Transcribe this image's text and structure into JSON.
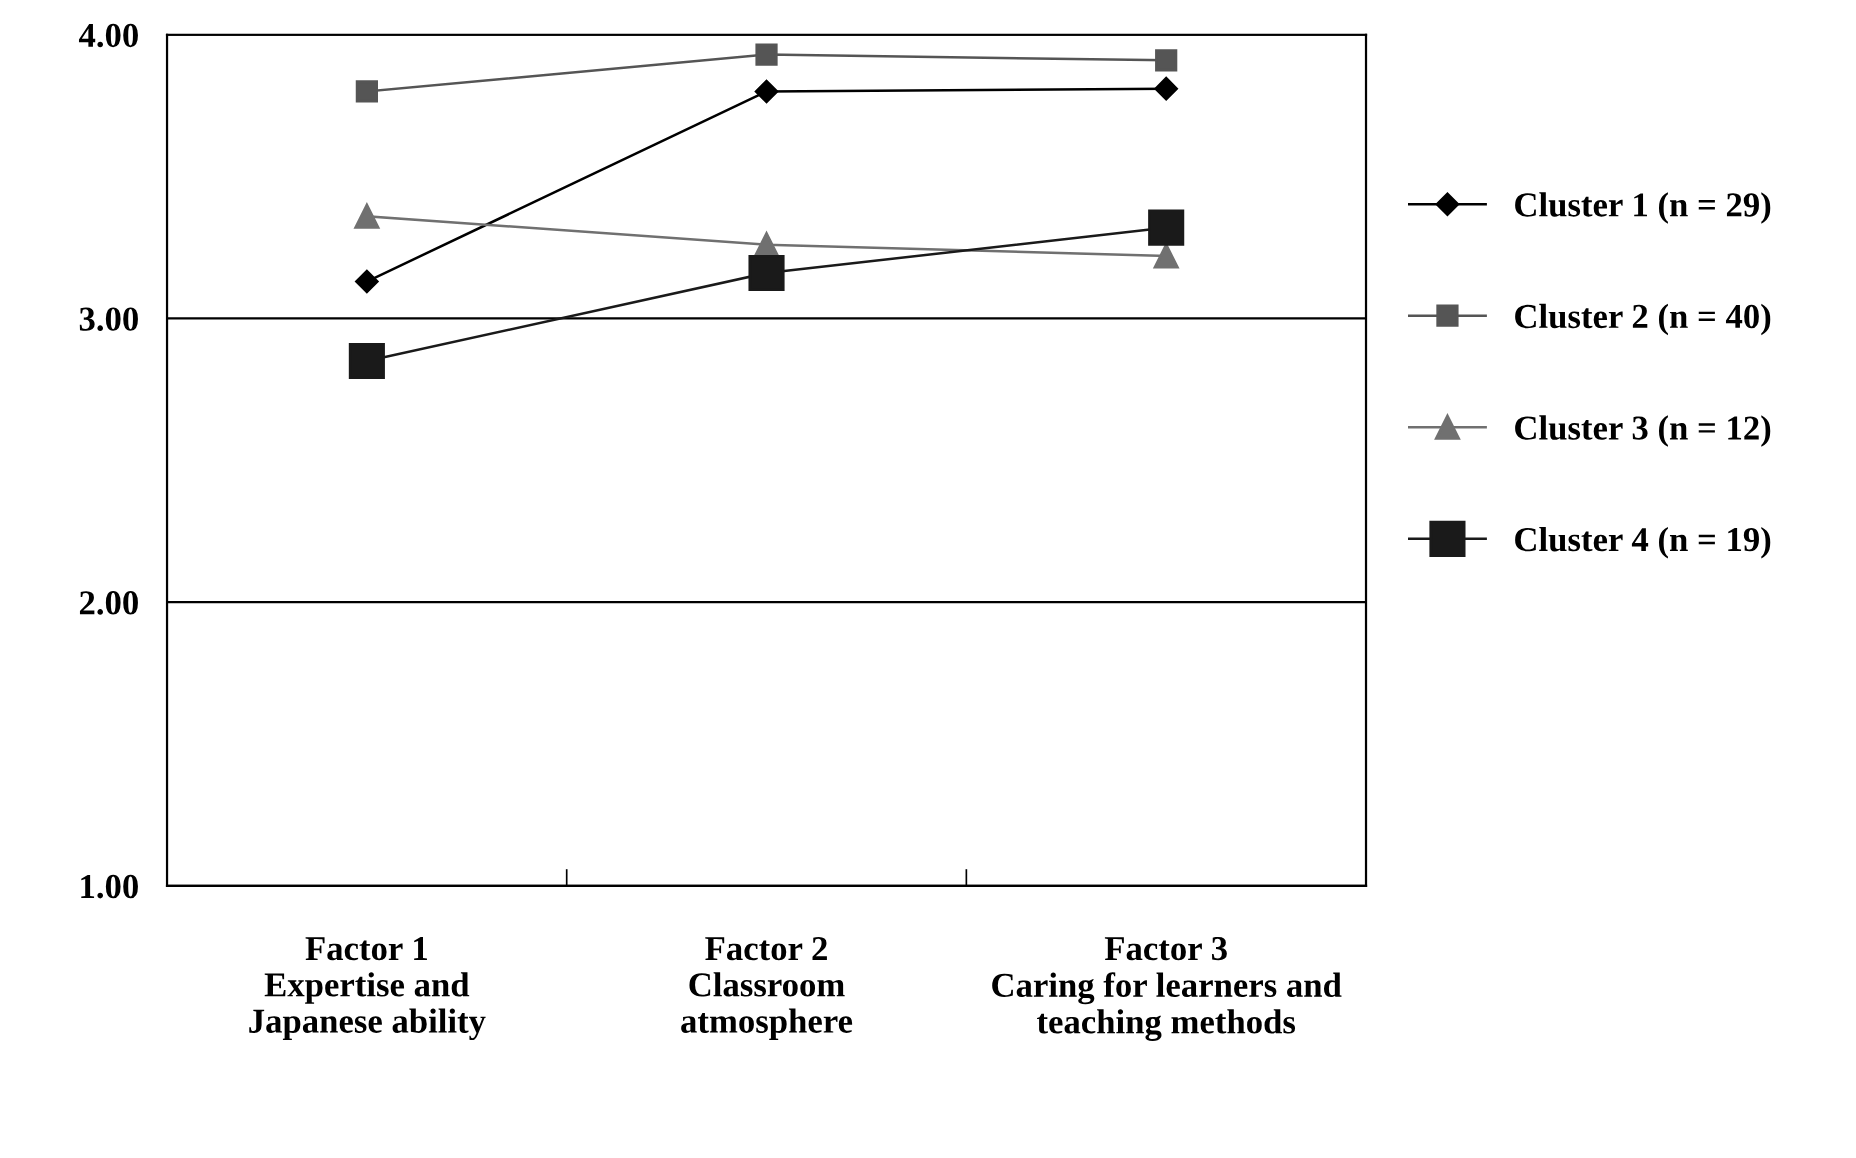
{
  "chart_data": {
    "type": "line",
    "categories": [
      "Factor 1\nExpertise and\nJapanese ability",
      "Factor 2\nClassroom\natmosphere",
      "Factor 3\nCaring for learners and\nteaching methods"
    ],
    "series": [
      {
        "name": "Cluster 1 (n = 29)",
        "color": "#000000",
        "marker": "diamond",
        "values": [
          3.13,
          3.8,
          3.81
        ]
      },
      {
        "name": "Cluster 2 (n = 40)",
        "color": "#555555",
        "marker": "square",
        "values": [
          3.8,
          3.93,
          3.91
        ]
      },
      {
        "name": "Cluster 3 (n = 12)",
        "color": "#707070",
        "marker": "triangle",
        "values": [
          3.36,
          3.26,
          3.22
        ]
      },
      {
        "name": "Cluster 4 (n = 19)",
        "color": "#1a1a1a",
        "marker": "square",
        "values": [
          2.85,
          3.16,
          3.32
        ]
      }
    ],
    "ylim": [
      1,
      4
    ],
    "yticks": [
      {
        "value": 1,
        "label": "1.00"
      },
      {
        "value": 2,
        "label": "2.00"
      },
      {
        "value": 3,
        "label": "3.00"
      },
      {
        "value": 4,
        "label": "4.00"
      }
    ],
    "grid": "y",
    "legend": "right",
    "line_style": "solid"
  }
}
